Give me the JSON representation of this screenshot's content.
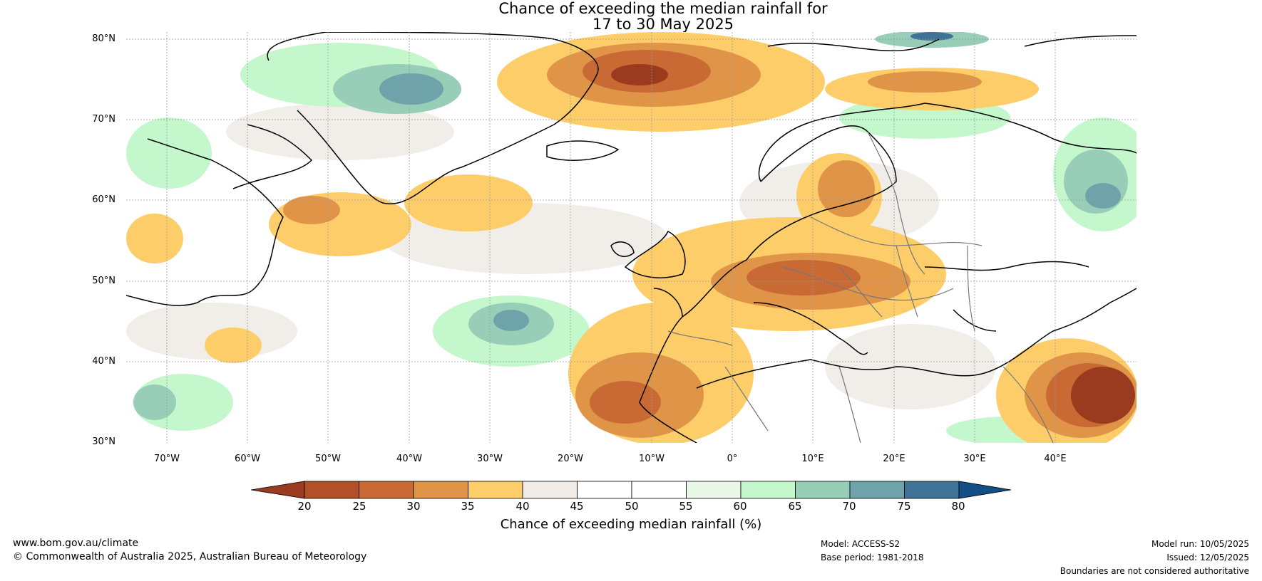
{
  "title": {
    "line1": "Chance of exceeding the median rainfall for",
    "line2": "17 to 30 May 2025"
  },
  "map": {
    "lat_labels": [
      "80°N",
      "70°N",
      "60°N",
      "50°N",
      "40°N",
      "30°N"
    ],
    "lon_labels": [
      "70°W",
      "60°W",
      "50°W",
      "40°W",
      "30°W",
      "20°W",
      "10°W",
      "0°",
      "10°E",
      "20°E",
      "30°E",
      "40°E"
    ],
    "lat_range": [
      30,
      80
    ],
    "lon_range": [
      -75,
      50
    ]
  },
  "colorbar": {
    "ticks": [
      "20",
      "25",
      "30",
      "35",
      "40",
      "45",
      "50",
      "55",
      "60",
      "65",
      "70",
      "75",
      "80"
    ],
    "colors": [
      "#9a3a1e",
      "#b2502a",
      "#c96a35",
      "#e09448",
      "#fdcd6a",
      "#f0ebe6",
      "#ffffff",
      "#ffffff",
      "#e8f7e8",
      "#c4f7cc",
      "#98ceb8",
      "#6fa3aa",
      "#3f7296",
      "#114f85"
    ],
    "label": "Chance of exceeding median rainfall (%)"
  },
  "footer": {
    "url": "www.bom.gov.au/climate",
    "copyright": "© Commonwealth of Australia 2025, Australian Bureau of Meteorology",
    "model": "Model: ACCESS-S2",
    "base_period": "Base period: 1981-2018",
    "model_run": "Model run: 10/05/2025",
    "issued": "Issued: 12/05/2025",
    "disclaimer": "Boundaries are not considered authoritative"
  }
}
